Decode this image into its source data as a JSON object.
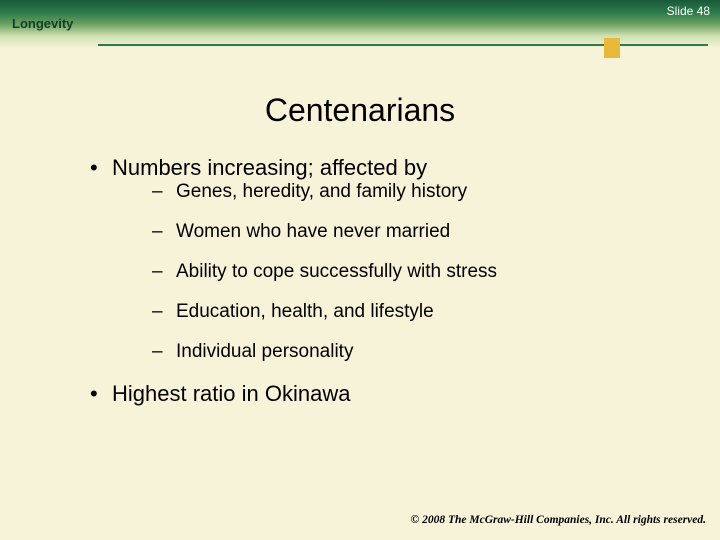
{
  "header": {
    "section_label": "Longevity",
    "slide_number": "Slide 48",
    "band_gradient_colors": [
      "#1a5a3a",
      "#2a7a4a",
      "#6aa060",
      "#cfe0b0",
      "#f7f3d8"
    ],
    "rule_color": "#2a7a4a",
    "marker_color": "#e8b93a"
  },
  "title": "Centenarians",
  "bullets": [
    {
      "text": "Numbers increasing; affected by",
      "sub": [
        "Genes, heredity, and family history",
        "Women who have never married",
        "Ability to cope successfully with stress",
        "Education, health, and lifestyle",
        "Individual personality"
      ]
    },
    {
      "text": "Highest ratio in Okinawa",
      "sub": []
    }
  ],
  "footer": {
    "copyright": "© 2008 The McGraw-Hill Companies, Inc. All rights reserved."
  },
  "style": {
    "background_color": "#f7f3d8",
    "title_fontsize": 32,
    "l1_fontsize": 22,
    "l2_fontsize": 19,
    "text_color": "#000000",
    "section_label_color": "#104028",
    "slide_number_color": "#ffffff"
  }
}
